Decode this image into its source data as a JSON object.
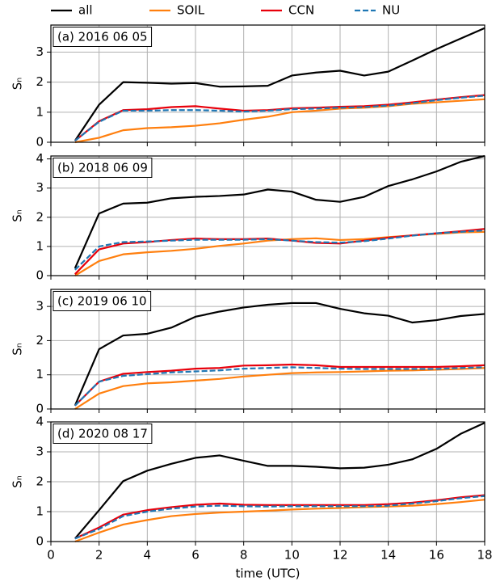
{
  "chart_data": [
    {
      "type": "line",
      "title": "(a) 2016 06 05",
      "ylabel": "Sₙ",
      "x": [
        1,
        2,
        3,
        4,
        5,
        6,
        7,
        8,
        9,
        10,
        11,
        12,
        13,
        14,
        15,
        16,
        17,
        18
      ],
      "xlim": [
        0,
        18
      ],
      "xticks": [
        0,
        2,
        4,
        6,
        8,
        10,
        12,
        14,
        16,
        18
      ],
      "ylim": [
        0,
        3.9
      ],
      "yticks": [
        0,
        1,
        2,
        3
      ],
      "grid": true,
      "series": [
        {
          "name": "all",
          "color": "#000000",
          "dash": false,
          "values": [
            0.05,
            1.25,
            2.0,
            1.98,
            1.95,
            1.97,
            1.85,
            1.86,
            1.88,
            2.22,
            2.32,
            2.38,
            2.22,
            2.35,
            2.72,
            3.1,
            3.45,
            3.8
          ]
        },
        {
          "name": "SOIL",
          "color": "#ff7f0e",
          "dash": false,
          "values": [
            0,
            0.15,
            0.4,
            0.47,
            0.5,
            0.55,
            0.63,
            0.75,
            0.85,
            1.0,
            1.05,
            1.12,
            1.15,
            1.2,
            1.28,
            1.33,
            1.38,
            1.43
          ]
        },
        {
          "name": "CCN",
          "color": "#e8000b",
          "dash": false,
          "values": [
            0.05,
            0.7,
            1.07,
            1.1,
            1.17,
            1.2,
            1.12,
            1.05,
            1.07,
            1.13,
            1.15,
            1.18,
            1.2,
            1.25,
            1.33,
            1.42,
            1.5,
            1.57
          ]
        },
        {
          "name": "NU",
          "color": "#1f77b4",
          "dash": true,
          "values": [
            0.05,
            0.68,
            1.05,
            1.05,
            1.07,
            1.07,
            1.05,
            1.02,
            1.05,
            1.1,
            1.12,
            1.15,
            1.17,
            1.22,
            1.3,
            1.4,
            1.48,
            1.55
          ]
        }
      ]
    },
    {
      "type": "line",
      "title": "(b) 2018 06 09",
      "ylabel": "Sₙ",
      "x": [
        1,
        2,
        3,
        4,
        5,
        6,
        7,
        8,
        9,
        10,
        11,
        12,
        13,
        14,
        15,
        16,
        17,
        18
      ],
      "xlim": [
        0,
        18
      ],
      "xticks": [
        0,
        2,
        4,
        6,
        8,
        10,
        12,
        14,
        16,
        18
      ],
      "ylim": [
        0,
        4.1
      ],
      "yticks": [
        0,
        1,
        2,
        3,
        4
      ],
      "grid": true,
      "series": [
        {
          "color": "#000000",
          "dash": false,
          "values": [
            0.25,
            2.13,
            2.47,
            2.5,
            2.65,
            2.7,
            2.73,
            2.78,
            2.95,
            2.88,
            2.6,
            2.53,
            2.7,
            3.07,
            3.3,
            3.57,
            3.9,
            4.1
          ]
        },
        {
          "color": "#ff7f0e",
          "dash": false,
          "values": [
            0,
            0.5,
            0.73,
            0.8,
            0.85,
            0.92,
            1.02,
            1.1,
            1.2,
            1.25,
            1.28,
            1.22,
            1.25,
            1.32,
            1.38,
            1.43,
            1.48,
            1.5
          ]
        },
        {
          "color": "#e8000b",
          "dash": false,
          "values": [
            0.05,
            0.9,
            1.1,
            1.15,
            1.22,
            1.27,
            1.25,
            1.25,
            1.27,
            1.2,
            1.12,
            1.1,
            1.2,
            1.3,
            1.38,
            1.45,
            1.52,
            1.6
          ]
        },
        {
          "color": "#1f77b4",
          "dash": true,
          "values": [
            0.2,
            1.0,
            1.15,
            1.17,
            1.2,
            1.23,
            1.23,
            1.23,
            1.25,
            1.2,
            1.15,
            1.13,
            1.18,
            1.27,
            1.37,
            1.45,
            1.5,
            1.55
          ]
        }
      ]
    },
    {
      "type": "line",
      "title": "(c) 2019 06 10",
      "ylabel": "Sₙ",
      "x": [
        1,
        2,
        3,
        4,
        5,
        6,
        7,
        8,
        9,
        10,
        11,
        12,
        13,
        14,
        15,
        16,
        17,
        18
      ],
      "xlim": [
        0,
        18
      ],
      "xticks": [
        0,
        2,
        4,
        6,
        8,
        10,
        12,
        14,
        16,
        18
      ],
      "ylim": [
        0,
        3.5
      ],
      "yticks": [
        0,
        1,
        2,
        3
      ],
      "grid": true,
      "series": [
        {
          "color": "#000000",
          "dash": false,
          "values": [
            0.1,
            1.75,
            2.15,
            2.2,
            2.38,
            2.7,
            2.85,
            2.97,
            3.05,
            3.1,
            3.1,
            2.93,
            2.8,
            2.73,
            2.53,
            2.6,
            2.72,
            2.78
          ]
        },
        {
          "color": "#ff7f0e",
          "dash": false,
          "values": [
            0,
            0.45,
            0.67,
            0.75,
            0.78,
            0.83,
            0.88,
            0.95,
            1.0,
            1.05,
            1.07,
            1.08,
            1.1,
            1.12,
            1.13,
            1.15,
            1.17,
            1.2
          ]
        },
        {
          "color": "#e8000b",
          "dash": false,
          "values": [
            0.1,
            0.8,
            1.03,
            1.08,
            1.12,
            1.18,
            1.2,
            1.27,
            1.28,
            1.3,
            1.28,
            1.23,
            1.23,
            1.23,
            1.23,
            1.23,
            1.25,
            1.28
          ]
        },
        {
          "color": "#1f77b4",
          "dash": true,
          "values": [
            0.1,
            0.8,
            0.97,
            1.02,
            1.07,
            1.1,
            1.13,
            1.18,
            1.2,
            1.22,
            1.2,
            1.18,
            1.17,
            1.17,
            1.17,
            1.17,
            1.2,
            1.22
          ]
        }
      ]
    },
    {
      "type": "line",
      "title": "(d) 2020 08 17",
      "ylabel": "Sₙ",
      "xlabel": "time (UTC)",
      "x": [
        1,
        2,
        3,
        4,
        5,
        6,
        7,
        8,
        9,
        10,
        11,
        12,
        13,
        14,
        15,
        16,
        17,
        18
      ],
      "xlim": [
        0,
        18
      ],
      "xticks": [
        0,
        2,
        4,
        6,
        8,
        10,
        12,
        14,
        16,
        18
      ],
      "ylim": [
        0,
        4
      ],
      "yticks": [
        0,
        1,
        2,
        3,
        4
      ],
      "grid": true,
      "series": [
        {
          "color": "#000000",
          "dash": false,
          "values": [
            0.1,
            1.05,
            2.02,
            2.37,
            2.6,
            2.8,
            2.88,
            2.7,
            2.53,
            2.53,
            2.5,
            2.45,
            2.47,
            2.57,
            2.75,
            3.1,
            3.6,
            3.97
          ]
        },
        {
          "color": "#ff7f0e",
          "dash": false,
          "values": [
            0,
            0.3,
            0.57,
            0.72,
            0.85,
            0.92,
            0.97,
            1.0,
            1.03,
            1.07,
            1.1,
            1.12,
            1.15,
            1.17,
            1.2,
            1.25,
            1.32,
            1.4
          ]
        },
        {
          "color": "#e8000b",
          "dash": false,
          "values": [
            0.1,
            0.47,
            0.9,
            1.05,
            1.15,
            1.23,
            1.27,
            1.23,
            1.22,
            1.22,
            1.22,
            1.22,
            1.22,
            1.25,
            1.3,
            1.38,
            1.48,
            1.55
          ]
        },
        {
          "color": "#1f77b4",
          "dash": true,
          "values": [
            0.1,
            0.42,
            0.85,
            1.0,
            1.1,
            1.17,
            1.2,
            1.18,
            1.17,
            1.18,
            1.18,
            1.18,
            1.18,
            1.2,
            1.27,
            1.35,
            1.45,
            1.52
          ]
        }
      ]
    }
  ]
}
